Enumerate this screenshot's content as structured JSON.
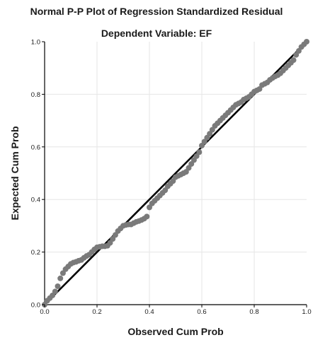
{
  "chart_data": {
    "type": "scatter",
    "title": "Normal P-P Plot of Regression Standardized Residual",
    "subtitle": "Dependent Variable: EF",
    "xlabel": "Observed Cum Prob",
    "ylabel": "Expected Cum Prob",
    "xlim": [
      0.0,
      1.0
    ],
    "ylim": [
      0.0,
      1.0
    ],
    "xticks": [
      "0.0",
      "0.2",
      "0.4",
      "0.6",
      "0.8",
      "1.0"
    ],
    "yticks": [
      "0.0",
      "0.2",
      "0.4",
      "0.6",
      "0.8",
      "1.0"
    ],
    "grid": true,
    "reference_line": {
      "x": [
        0.0,
        1.0
      ],
      "y": [
        0.0,
        1.0
      ]
    },
    "series": [
      {
        "x": [
          0.0,
          0.01,
          0.02,
          0.03,
          0.04,
          0.05,
          0.06,
          0.07,
          0.08,
          0.09,
          0.1,
          0.11,
          0.12,
          0.13,
          0.14,
          0.15,
          0.16,
          0.17,
          0.18,
          0.19,
          0.2,
          0.21,
          0.22,
          0.23,
          0.24,
          0.25,
          0.26,
          0.27,
          0.28,
          0.29,
          0.3,
          0.31,
          0.32,
          0.33,
          0.34,
          0.35,
          0.36,
          0.37,
          0.38,
          0.39,
          0.4,
          0.41,
          0.42,
          0.43,
          0.44,
          0.45,
          0.46,
          0.47,
          0.48,
          0.49,
          0.5,
          0.51,
          0.52,
          0.53,
          0.54,
          0.55,
          0.56,
          0.57,
          0.58,
          0.59,
          0.6,
          0.61,
          0.62,
          0.63,
          0.64,
          0.65,
          0.66,
          0.67,
          0.68,
          0.69,
          0.7,
          0.71,
          0.72,
          0.73,
          0.74,
          0.75,
          0.76,
          0.77,
          0.78,
          0.79,
          0.8,
          0.81,
          0.82,
          0.83,
          0.84,
          0.85,
          0.86,
          0.87,
          0.88,
          0.89,
          0.9,
          0.91,
          0.92,
          0.93,
          0.94,
          0.95,
          0.96,
          0.97,
          0.98,
          0.99,
          1.0
        ],
        "y": [
          0.0,
          0.015,
          0.025,
          0.035,
          0.05,
          0.07,
          0.1,
          0.12,
          0.135,
          0.145,
          0.155,
          0.16,
          0.163,
          0.167,
          0.17,
          0.178,
          0.185,
          0.19,
          0.2,
          0.21,
          0.218,
          0.22,
          0.222,
          0.222,
          0.224,
          0.235,
          0.25,
          0.265,
          0.28,
          0.29,
          0.3,
          0.303,
          0.305,
          0.305,
          0.31,
          0.315,
          0.318,
          0.322,
          0.327,
          0.335,
          0.37,
          0.385,
          0.395,
          0.405,
          0.415,
          0.425,
          0.435,
          0.45,
          0.46,
          0.47,
          0.485,
          0.49,
          0.495,
          0.5,
          0.505,
          0.52,
          0.535,
          0.55,
          0.565,
          0.58,
          0.605,
          0.62,
          0.635,
          0.65,
          0.665,
          0.68,
          0.69,
          0.7,
          0.71,
          0.72,
          0.73,
          0.74,
          0.75,
          0.76,
          0.765,
          0.77,
          0.78,
          0.785,
          0.79,
          0.8,
          0.81,
          0.815,
          0.82,
          0.835,
          0.84,
          0.845,
          0.855,
          0.862,
          0.868,
          0.873,
          0.88,
          0.89,
          0.9,
          0.91,
          0.92,
          0.93,
          0.95,
          0.965,
          0.98,
          0.99,
          1.0
        ]
      }
    ]
  },
  "colors": {
    "point_fill": "#7a7a7a",
    "reference_line": "#000000",
    "grid": "#e6e6e6",
    "axis": "#000000",
    "text": "#1a1a1a"
  }
}
